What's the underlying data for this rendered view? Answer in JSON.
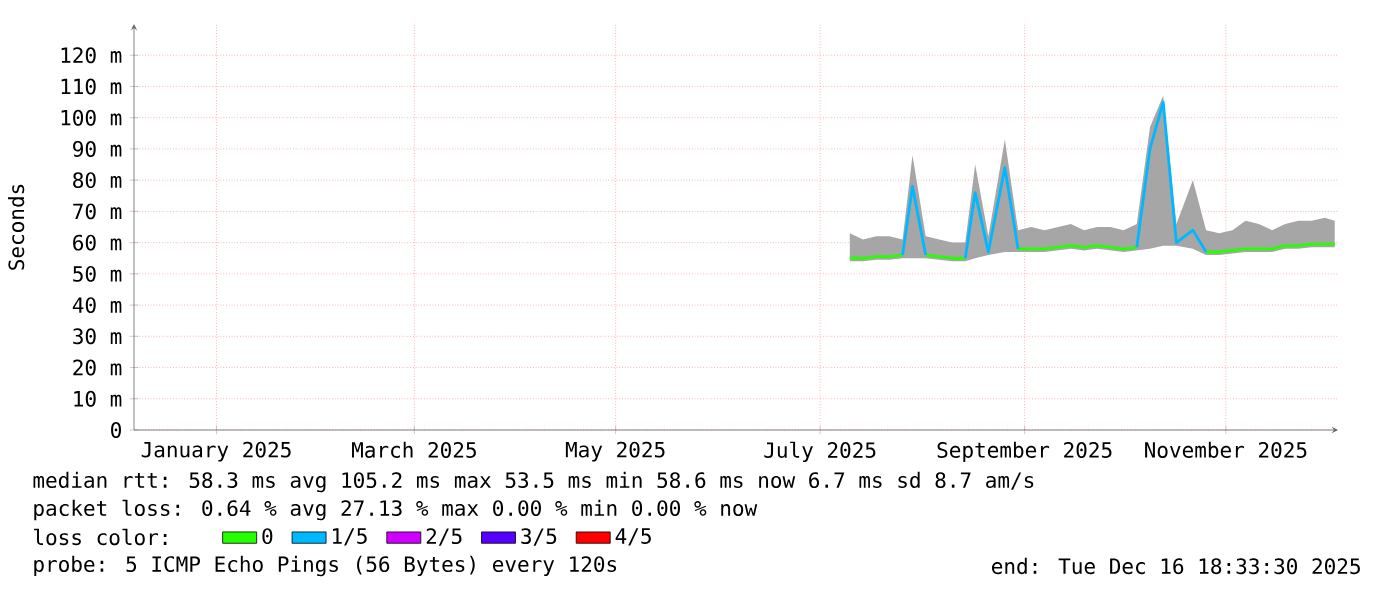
{
  "chart_data": {
    "type": "line",
    "ylabel": "Seconds",
    "legend_title": "loss color:",
    "x": [
      "2025-07-21",
      "2025-07-25",
      "2025-07-29",
      "2025-08-02",
      "2025-08-06",
      "2025-08-09",
      "2025-08-13",
      "2025-08-17",
      "2025-08-21",
      "2025-08-25",
      "2025-08-28",
      "2025-09-01",
      "2025-09-06",
      "2025-09-10",
      "2025-09-14",
      "2025-09-18",
      "2025-09-22",
      "2025-09-26",
      "2025-09-30",
      "2025-10-04",
      "2025-10-08",
      "2025-10-12",
      "2025-10-16",
      "2025-10-20",
      "2025-10-24",
      "2025-10-28",
      "2025-11-02",
      "2025-11-06",
      "2025-11-10",
      "2025-11-14",
      "2025-11-18",
      "2025-11-22",
      "2025-11-26",
      "2025-11-30",
      "2025-12-04",
      "2025-12-08",
      "2025-12-12",
      "2025-12-15"
    ],
    "series": [
      {
        "name": "0",
        "color": "#26ff00",
        "values": [
          55,
          55,
          55.5,
          55.5,
          56,
          null,
          56,
          55.5,
          55,
          55,
          null,
          null,
          null,
          58,
          58,
          58,
          58.5,
          59,
          58.5,
          59,
          58.5,
          58,
          58.5,
          null,
          null,
          null,
          null,
          57,
          57,
          57.5,
          58,
          58,
          58,
          59,
          59,
          59.5,
          59.5,
          59.5
        ],
        "lower": [
          54,
          54,
          54.5,
          54.5,
          55,
          55,
          55,
          54.5,
          54,
          54,
          55,
          56,
          57,
          57,
          57,
          57,
          57.5,
          58,
          57.5,
          58,
          57.5,
          57,
          57.5,
          58,
          59,
          59,
          58,
          56,
          56,
          56.5,
          57,
          57,
          57,
          58,
          58,
          58.5,
          58.5,
          58.5
        ],
        "upper": [
          63,
          61,
          62,
          62,
          61,
          88,
          62,
          61,
          60,
          60,
          85,
          62,
          93,
          64,
          65,
          64,
          65,
          66,
          64,
          65,
          65,
          64,
          66,
          97,
          107,
          66,
          80,
          64,
          63,
          64,
          67,
          66,
          64,
          66,
          67,
          67,
          68,
          67
        ]
      },
      {
        "name": "1/5",
        "color": "#00b8ff",
        "values": [
          null,
          null,
          null,
          null,
          56,
          78,
          56,
          null,
          null,
          55,
          76,
          57,
          84,
          58,
          null,
          null,
          null,
          null,
          null,
          null,
          null,
          null,
          58.5,
          90,
          105,
          60,
          64,
          57,
          null,
          null,
          null,
          null,
          null,
          null,
          null,
          null,
          null,
          null
        ]
      },
      {
        "name": "2/5",
        "color": "#d000ff",
        "values": [
          null,
          null,
          null,
          null,
          null,
          null,
          null,
          null,
          null,
          null,
          null,
          null,
          null,
          null,
          null,
          null,
          null,
          null,
          null,
          null,
          null,
          null,
          null,
          null,
          null,
          null,
          null,
          null,
          null,
          null,
          null,
          null,
          null,
          null,
          null,
          null,
          null,
          null
        ]
      },
      {
        "name": "3/5",
        "color": "#5500ff",
        "values": [
          null,
          null,
          null,
          null,
          null,
          null,
          null,
          null,
          null,
          null,
          null,
          null,
          null,
          null,
          null,
          null,
          null,
          null,
          null,
          null,
          null,
          null,
          null,
          null,
          null,
          null,
          null,
          null,
          null,
          null,
          null,
          null,
          null,
          null,
          null,
          null,
          null,
          null
        ]
      },
      {
        "name": "4/5",
        "color": "#ff0000",
        "values": [
          null,
          null,
          null,
          null,
          null,
          null,
          null,
          null,
          null,
          null,
          null,
          null,
          null,
          null,
          null,
          null,
          null,
          null,
          null,
          null,
          null,
          null,
          null,
          null,
          null,
          null,
          null,
          null,
          null,
          null,
          null,
          null,
          null,
          null,
          null,
          null,
          null,
          null
        ]
      }
    ],
    "xlim": [
      "2024-12-16",
      "2025-12-16"
    ],
    "xticks": [
      {
        "value": "2025-01-10",
        "label": "January 2025"
      },
      {
        "value": "2025-03-11",
        "label": "March 2025"
      },
      {
        "value": "2025-05-11",
        "label": "May 2025"
      },
      {
        "value": "2025-07-12",
        "label": "July 2025"
      },
      {
        "value": "2025-09-12",
        "label": "September 2025"
      },
      {
        "value": "2025-11-12",
        "label": "November 2025"
      }
    ],
    "ylim": [
      0,
      130
    ],
    "yticks": [
      0,
      {
        "value": 10,
        "label": "10 m"
      },
      {
        "value": 20,
        "label": "20 m"
      },
      {
        "value": 30,
        "label": "30 m"
      },
      {
        "value": 40,
        "label": "40 m"
      },
      {
        "value": 50,
        "label": "50 m"
      },
      {
        "value": 60,
        "label": "60 m"
      },
      {
        "value": 70,
        "label": "70 m"
      },
      {
        "value": 80,
        "label": "80 m"
      },
      {
        "value": 90,
        "label": "90 m"
      },
      {
        "value": 100,
        "label": "100 m"
      },
      {
        "value": 110,
        "label": "110 m"
      },
      {
        "value": 120,
        "label": "120 m"
      }
    ],
    "grid": true,
    "legend": "bottom",
    "annotations": [
      "median rtt:  58.3 ms avg  105.2 ms max  53.5 ms min  58.6 ms now  6.7 ms sd  8.7   am/s",
      "packet loss: 0.64 % avg  27.13 % max  0.00 % min  0.00 % now",
      "probe:       5 ICMP Echo Pings (56 Bytes) every 120s",
      "end: Tue Dec 16 18:33:30 2025"
    ]
  }
}
